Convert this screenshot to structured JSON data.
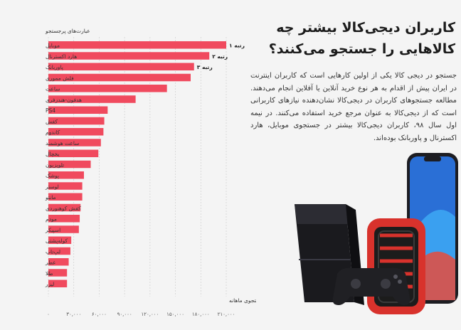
{
  "header": {
    "title_line1": "کاربران دیجی‌کالا بیشتر چه",
    "title_line2": "کالاهایی را جستجو می‌کنند؟"
  },
  "article": {
    "paragraph": "جستجو در دیجی کالا یکی از اولین کارهایی است که کاربران اینترنت در ایران پیش از اقدام به هر نوع خرید آنلاین یا آفلاین انجام می‌دهند. مطالعه جستجوهای کاربران در دیجی‌کالا نشان‌دهنده نیازهای کاربرانی است که از دیجی‌کالا به عنوان مرجع خرید استفاده می‌کنند. در نیمه اول سال ۹۸، کاربران دیجی‌کالا بیشتر در جستجوی موبایل، هارد اکسترنال و پاوربانک بوده‌اند."
  },
  "illustration": {
    "items": [
      "game-console",
      "game-controller",
      "external-hard-drive",
      "smartphone"
    ]
  },
  "chart_data": {
    "type": "bar",
    "orientation": "horizontal",
    "title": "",
    "ylabel": "عبارت‌های پرجستجو",
    "xlabel": "تعداد جستجوی ماهانه",
    "categories": [
      "موبایل",
      "هارد اکسترنال",
      "پاوربانک",
      "فلش مموری",
      "ساعت",
      "هدفون-هندزفری",
      "PS4",
      "کفش",
      "کاندوم",
      "ساعت هوشمند",
      "یخچال",
      "تلویزیون",
      "پوشک",
      "لوستر",
      "مانتو",
      "کفش کوهنوردی",
      "مودم",
      "اسپیکر",
      "کوله‌پشتی",
      "لپ‌تاپ",
      "عطر",
      "طلا",
      "لیزر"
    ],
    "values": [
      210000,
      190000,
      172000,
      168000,
      140000,
      103000,
      70000,
      66000,
      65000,
      62000,
      59000,
      50000,
      42000,
      40000,
      40000,
      38000,
      37000,
      36000,
      27000,
      26000,
      24000,
      22000,
      22000
    ],
    "rank_labels": [
      "رتبه ۱",
      "رتبه ۲",
      "رتبه ۳"
    ],
    "xlim": [
      0,
      210000
    ],
    "xticks": [
      0,
      30000,
      60000,
      90000,
      120000,
      150000,
      180000,
      210000
    ],
    "xtick_labels": [
      "۰",
      "۳۰,۰۰۰",
      "۶۰,۰۰۰",
      "۹۰,۰۰۰",
      "۱۲۰,۰۰۰",
      "۱۵۰,۰۰۰",
      "۱۸۰,۰۰۰",
      "۲۱۰,۰۰۰"
    ],
    "grid": true,
    "bar_color": "#f04a5e",
    "grid_color": "#cfcfcf"
  }
}
